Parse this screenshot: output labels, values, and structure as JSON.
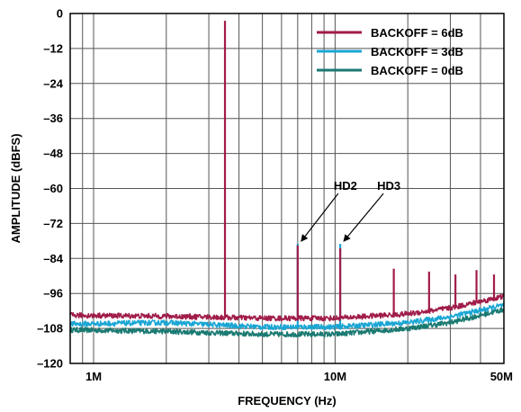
{
  "chart_data": {
    "type": "line",
    "xlabel": "FREQUENCY (Hz)",
    "ylabel": "AMPLITUDE (dBFS)",
    "x_scale": "log",
    "xlim": [
      800000,
      50000000
    ],
    "ylim": [
      -120,
      0
    ],
    "x_ticks": [
      {
        "value": 1000000,
        "label": "1M"
      },
      {
        "value": 10000000,
        "label": "10M"
      },
      {
        "value": 50000000,
        "label": "50M"
      }
    ],
    "y_ticks": [
      0,
      -12,
      -24,
      -36,
      -48,
      -60,
      -72,
      -84,
      -96,
      -108,
      -120
    ],
    "y_tick_labels": [
      "0",
      "–12",
      "–24",
      "–36",
      "–48",
      "–60",
      "–72",
      "–84",
      "–96",
      "–108",
      "–120"
    ],
    "grid": true,
    "legend_position": "top-right",
    "series": [
      {
        "name": "BACKOFF = 6dB",
        "color": "#a01c4a",
        "floor": [
          [
            800000,
            -103.5
          ],
          [
            2000000,
            -103.8
          ],
          [
            5000000,
            -104.5
          ],
          [
            10000000,
            -104.5
          ],
          [
            20000000,
            -103
          ],
          [
            30000000,
            -101
          ],
          [
            50000000,
            -97
          ]
        ],
        "peaks": [
          [
            3500000,
            -2.5
          ],
          [
            7000000,
            -79.5
          ],
          [
            10500000,
            -80.5
          ],
          [
            17500000,
            -87.5
          ],
          [
            24500000,
            -88.5
          ],
          [
            31500000,
            -89.5
          ],
          [
            38500000,
            -88
          ],
          [
            45500000,
            -89.5
          ]
        ]
      },
      {
        "name": "BACKOFF = 3dB",
        "color": "#1aa6d4",
        "floor": [
          [
            800000,
            -106.5
          ],
          [
            2000000,
            -106
          ],
          [
            5000000,
            -107.5
          ],
          [
            10000000,
            -107.5
          ],
          [
            20000000,
            -106
          ],
          [
            30000000,
            -104
          ],
          [
            50000000,
            -100
          ]
        ],
        "peaks": [
          [
            7000000,
            -79
          ],
          [
            10500000,
            -79
          ]
        ]
      },
      {
        "name": "BACKOFF = 0dB",
        "color": "#1a7a72",
        "floor": [
          [
            800000,
            -108.5
          ],
          [
            2000000,
            -109
          ],
          [
            5000000,
            -110
          ],
          [
            10000000,
            -110
          ],
          [
            20000000,
            -108
          ],
          [
            30000000,
            -106
          ],
          [
            50000000,
            -101.5
          ]
        ],
        "peaks": []
      }
    ],
    "annotations": [
      {
        "text": "HD2",
        "x": 7000000,
        "y": -79
      },
      {
        "text": "HD3",
        "x": 10500000,
        "y": -79
      }
    ]
  }
}
